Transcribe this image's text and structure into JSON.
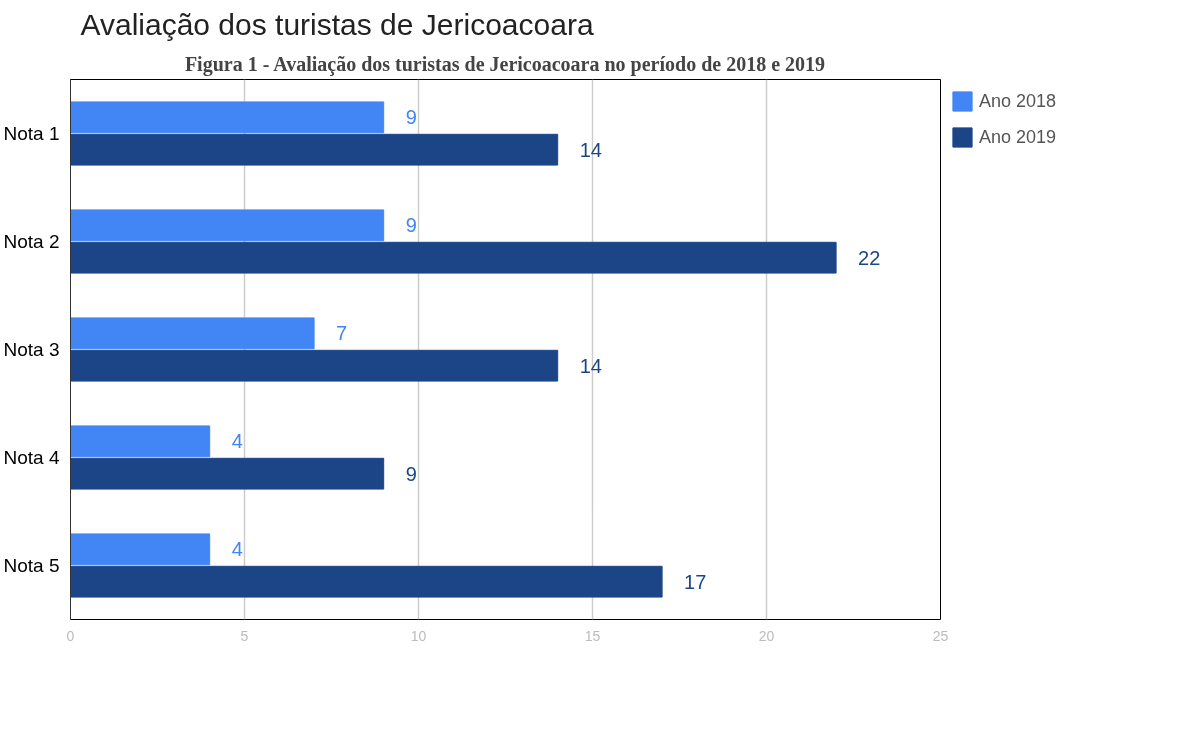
{
  "chart_data": {
    "type": "bar",
    "orientation": "horizontal",
    "title": "Avaliação dos turistas de Jericoacoara",
    "annotations": [
      "Figura 1 - Avaliação dos turistas de Jericoacoara no período de 2018 e 2019"
    ],
    "categories": [
      "Nota 1",
      "Nota 2",
      "Nota 3",
      "Nota 4",
      "Nota 5"
    ],
    "series": [
      {
        "name": "Ano 2018",
        "color": "#4285f4",
        "values": [
          9,
          9,
          7,
          4,
          4
        ]
      },
      {
        "name": "Ano 2019",
        "color": "#1c4587",
        "values": [
          14,
          22,
          14,
          9,
          17
        ]
      }
    ],
    "xlim": [
      0,
      25
    ],
    "xticks": [
      0,
      5,
      10,
      15,
      20,
      25
    ],
    "grid": "x",
    "legend": "top right",
    "data_labels": true
  }
}
